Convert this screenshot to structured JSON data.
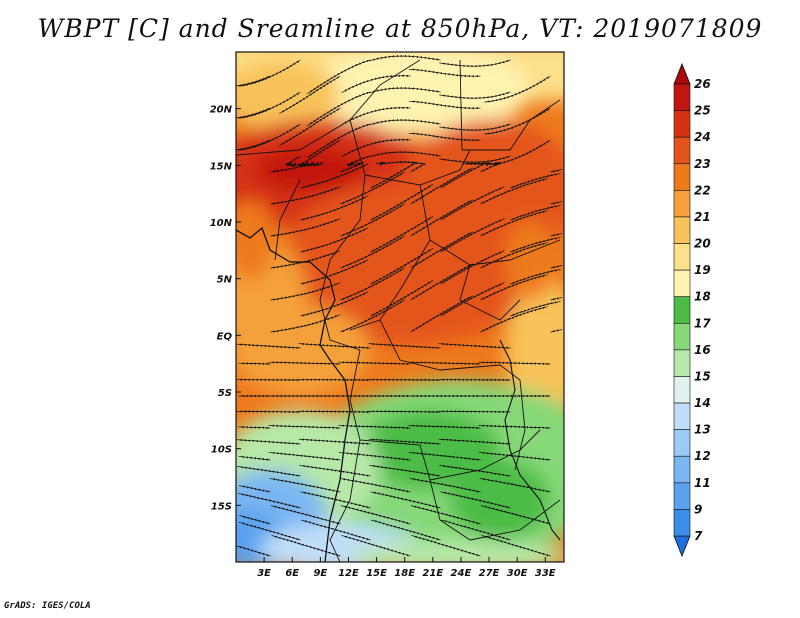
{
  "title": "WBPT [C] and Sreamline at 850hPa, VT: 2019071809",
  "credit": "GrADS: IGES/COLA",
  "map": {
    "lon_range": [
      0,
      35
    ],
    "lat_range": [
      -20,
      25
    ],
    "lon_ticks": [
      {
        "lon": 3,
        "label": "3E"
      },
      {
        "lon": 6,
        "label": "6E"
      },
      {
        "lon": 9,
        "label": "9E"
      },
      {
        "lon": 12,
        "label": "12E"
      },
      {
        "lon": 15,
        "label": "15E"
      },
      {
        "lon": 18,
        "label": "18E"
      },
      {
        "lon": 21,
        "label": "21E"
      },
      {
        "lon": 24,
        "label": "24E"
      },
      {
        "lon": 27,
        "label": "27E"
      },
      {
        "lon": 30,
        "label": "30E"
      },
      {
        "lon": 33,
        "label": "33E"
      }
    ],
    "lat_ticks": [
      {
        "lat": 20,
        "label": "20N"
      },
      {
        "lat": 15,
        "label": "15N"
      },
      {
        "lat": 10,
        "label": "10N"
      },
      {
        "lat": 5,
        "label": "5N"
      },
      {
        "lat": 0,
        "label": "EQ"
      },
      {
        "lat": -5,
        "label": "5S"
      },
      {
        "lat": -10,
        "label": "10S"
      },
      {
        "lat": -15,
        "label": "15S"
      }
    ]
  },
  "colorbar": {
    "levels": [
      "7",
      "9",
      "11",
      "12",
      "13",
      "14",
      "15",
      "16",
      "17",
      "18",
      "19",
      "20",
      "21",
      "22",
      "23",
      "24",
      "25",
      "26"
    ],
    "colors": [
      "#1e6fe0",
      "#3a8ee8",
      "#5aa2ee",
      "#7ab6f2",
      "#9ccaf6",
      "#c0def9",
      "#e2f2f0",
      "#b6e8a8",
      "#86d878",
      "#4cbc44",
      "#fff3b0",
      "#fde08a",
      "#f8c35a",
      "#f4a13a",
      "#ee7a1c",
      "#e4541a",
      "#d63212",
      "#c21410",
      "#a80a0a"
    ]
  }
}
